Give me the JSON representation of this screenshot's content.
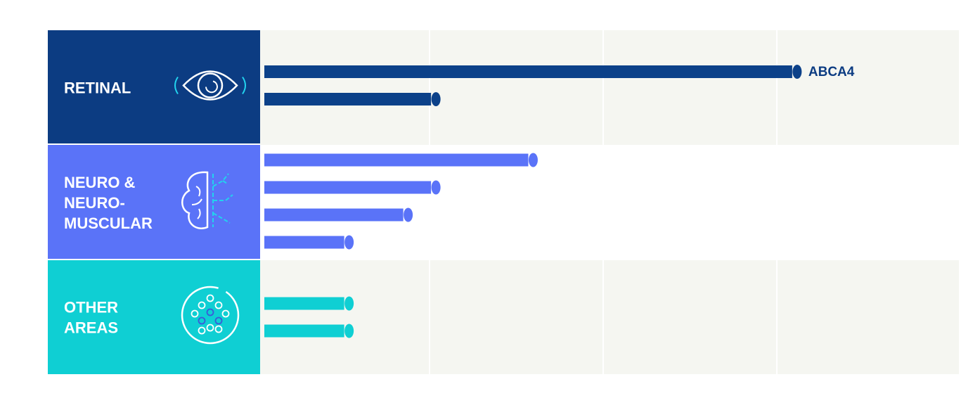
{
  "chart_data": {
    "type": "bar",
    "orientation": "horizontal",
    "value_axis": {
      "min": 0,
      "max": 20,
      "gridlines": [
        5,
        10,
        15
      ],
      "tick_labels_shown": false
    },
    "groups": [
      {
        "name": "RETINAL",
        "label_lines": [
          "RETINAL"
        ],
        "color": "#0c4189",
        "panel_color": "#0c3c82",
        "icon": "eye-icon",
        "bars": [
          {
            "value": 15.2,
            "label": "ABCA4"
          },
          {
            "value": 4.8,
            "label": ""
          }
        ]
      },
      {
        "name": "NEURO & NEURO-MUSCULAR",
        "label_lines": [
          "NEURO &",
          "NEURO-",
          "MUSCULAR"
        ],
        "color": "#5a73f8",
        "panel_color": "#5a73f8",
        "icon": "brain-icon",
        "bars": [
          {
            "value": 7.6,
            "label": ""
          },
          {
            "value": 4.8,
            "label": ""
          },
          {
            "value": 4.0,
            "label": ""
          },
          {
            "value": 2.3,
            "label": ""
          }
        ]
      },
      {
        "name": "OTHER AREAS",
        "label_lines": [
          "OTHER",
          "AREAS"
        ],
        "color": "#0fcfd3",
        "panel_color": "#0fcfd3",
        "icon": "cells-icon",
        "bars": [
          {
            "value": 2.3,
            "label": ""
          },
          {
            "value": 2.3,
            "label": ""
          }
        ]
      }
    ],
    "colors": {
      "label_text": "#0c3c82",
      "stripe": "#f5f6f1",
      "background": "#ffffff"
    }
  }
}
